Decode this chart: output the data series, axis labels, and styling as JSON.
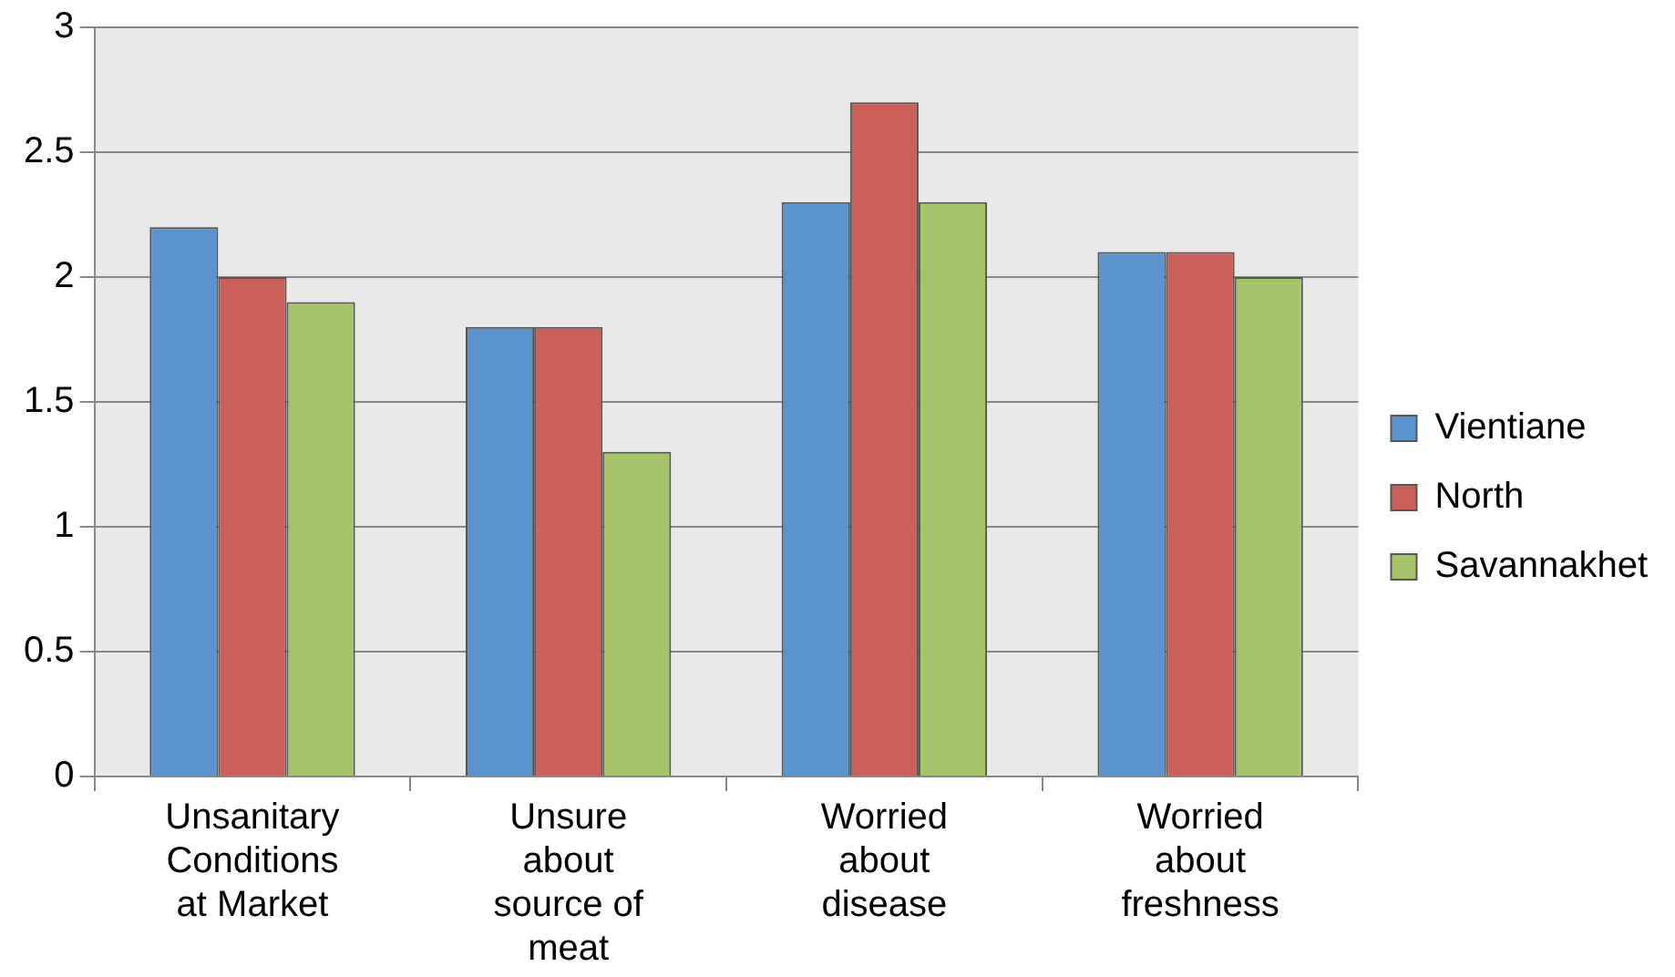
{
  "chart_data": {
    "type": "bar",
    "categories": [
      "Unsanitary Conditions at Market",
      "Unsure about source of meat",
      "Worried about disease",
      "Worried about freshness"
    ],
    "series": [
      {
        "name": "Vientiane",
        "color": "#5b93ce",
        "values": [
          2.2,
          1.8,
          2.3,
          2.1
        ]
      },
      {
        "name": "North",
        "color": "#cd5f5a",
        "values": [
          2.0,
          1.8,
          2.7,
          2.1
        ]
      },
      {
        "name": "Savannakhet",
        "color": "#a5c46a",
        "values": [
          1.9,
          1.3,
          2.3,
          2.0
        ]
      }
    ],
    "ylim": [
      0,
      3
    ],
    "yticks": [
      0,
      0.5,
      1,
      1.5,
      2,
      2.5,
      3
    ],
    "grid": "y",
    "legend": "right"
  }
}
